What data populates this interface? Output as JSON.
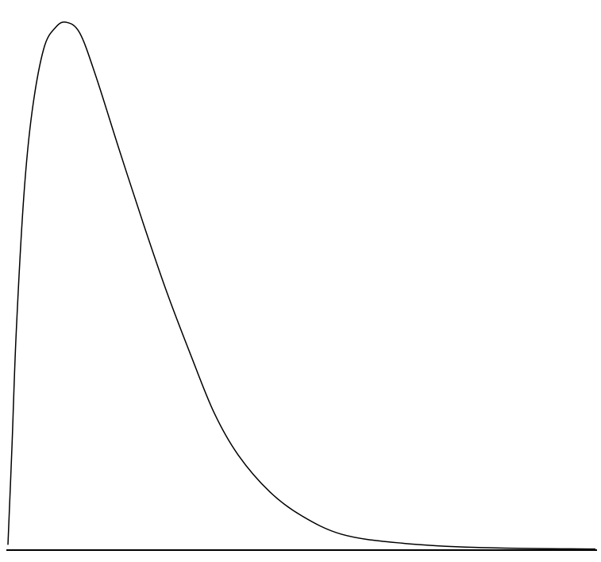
{
  "chart_data": {
    "type": "line",
    "x": [
      0,
      0.07,
      0.14,
      0.27,
      0.41,
      0.61,
      0.81,
      0.99,
      1.22,
      1.49,
      1.89,
      2.3,
      2.7,
      3.11,
      3.51,
      3.92,
      4.46,
      5.0,
      5.68,
      6.62,
      7.97,
      10
    ],
    "values": [
      0.01,
      0.2,
      0.41,
      0.67,
      0.83,
      0.95,
      0.99,
      1.0,
      0.98,
      0.9,
      0.76,
      0.62,
      0.49,
      0.37,
      0.26,
      0.18,
      0.11,
      0.065,
      0.03,
      0.014,
      0.005,
      0.002
    ],
    "color": "#000000",
    "xlim": [
      0,
      10
    ],
    "ylim": [
      0,
      1
    ]
  }
}
